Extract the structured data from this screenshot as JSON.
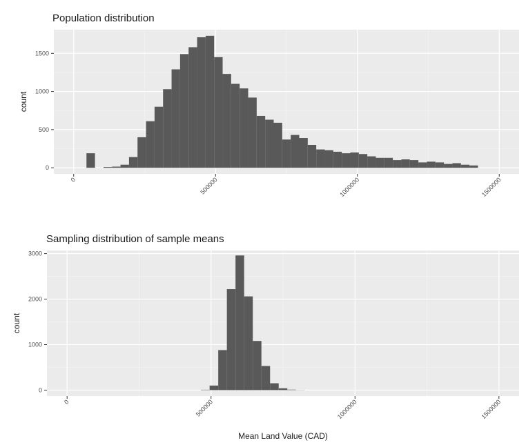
{
  "chart_data": [
    {
      "type": "bar",
      "title": "Population distribution",
      "xlabel": "",
      "ylabel": "count",
      "xlim": [
        -70000,
        1570000
      ],
      "ylim": [
        -80,
        1810
      ],
      "bin_width": 30000,
      "x_ticks": [
        0,
        500000,
        1000000,
        1500000
      ],
      "x_tick_labels": [
        "0",
        "500000",
        "1000000",
        "1500000"
      ],
      "y_ticks": [
        0,
        500,
        1000,
        1500
      ],
      "y_tick_labels": [
        "0",
        "500",
        "1000",
        "1500"
      ],
      "grid": true,
      "legend": "none",
      "bar_color": "#595959",
      "panel_color": "#ebebeb",
      "bins_start": [
        45000,
        75000,
        105000,
        135000,
        165000,
        195000,
        225000,
        255000,
        285000,
        315000,
        345000,
        375000,
        405000,
        435000,
        465000,
        495000,
        525000,
        555000,
        585000,
        615000,
        645000,
        675000,
        705000,
        735000,
        765000,
        795000,
        825000,
        855000,
        885000,
        915000,
        945000,
        975000,
        1005000,
        1035000,
        1065000,
        1095000,
        1125000,
        1155000,
        1185000,
        1215000,
        1245000,
        1275000,
        1305000,
        1335000,
        1365000,
        1395000,
        1425000,
        1455000
      ],
      "values": [
        190,
        0,
        10,
        15,
        40,
        140,
        400,
        610,
        800,
        1030,
        1290,
        1490,
        1580,
        1710,
        1730,
        1450,
        1230,
        1100,
        1040,
        920,
        680,
        630,
        590,
        370,
        430,
        390,
        300,
        240,
        230,
        210,
        190,
        200,
        180,
        150,
        130,
        130,
        100,
        110,
        100,
        70,
        80,
        70,
        50,
        60,
        40,
        30,
        0,
        0
      ]
    },
    {
      "type": "bar",
      "title": "Sampling distribution of sample means",
      "xlabel": "Mean Land Value (CAD)",
      "ylabel": "count",
      "xlim": [
        -70000,
        1570000
      ],
      "ylim": [
        -130,
        3070
      ],
      "bin_width": 30000,
      "x_ticks": [
        0,
        500000,
        1000000,
        1500000
      ],
      "x_tick_labels": [
        "0",
        "500000",
        "1000000",
        "1500000"
      ],
      "y_ticks": [
        0,
        1000,
        2000,
        3000
      ],
      "y_tick_labels": [
        "0",
        "1000",
        "2000",
        "3000"
      ],
      "grid": true,
      "legend": "none",
      "bar_color": "#595959",
      "panel_color": "#ebebeb",
      "bins_start": [
        465000,
        495000,
        525000,
        555000,
        585000,
        615000,
        645000,
        675000,
        705000,
        735000,
        765000,
        795000
      ],
      "values": [
        8,
        100,
        880,
        2220,
        2960,
        2060,
        1080,
        530,
        150,
        40,
        10,
        3
      ]
    }
  ]
}
